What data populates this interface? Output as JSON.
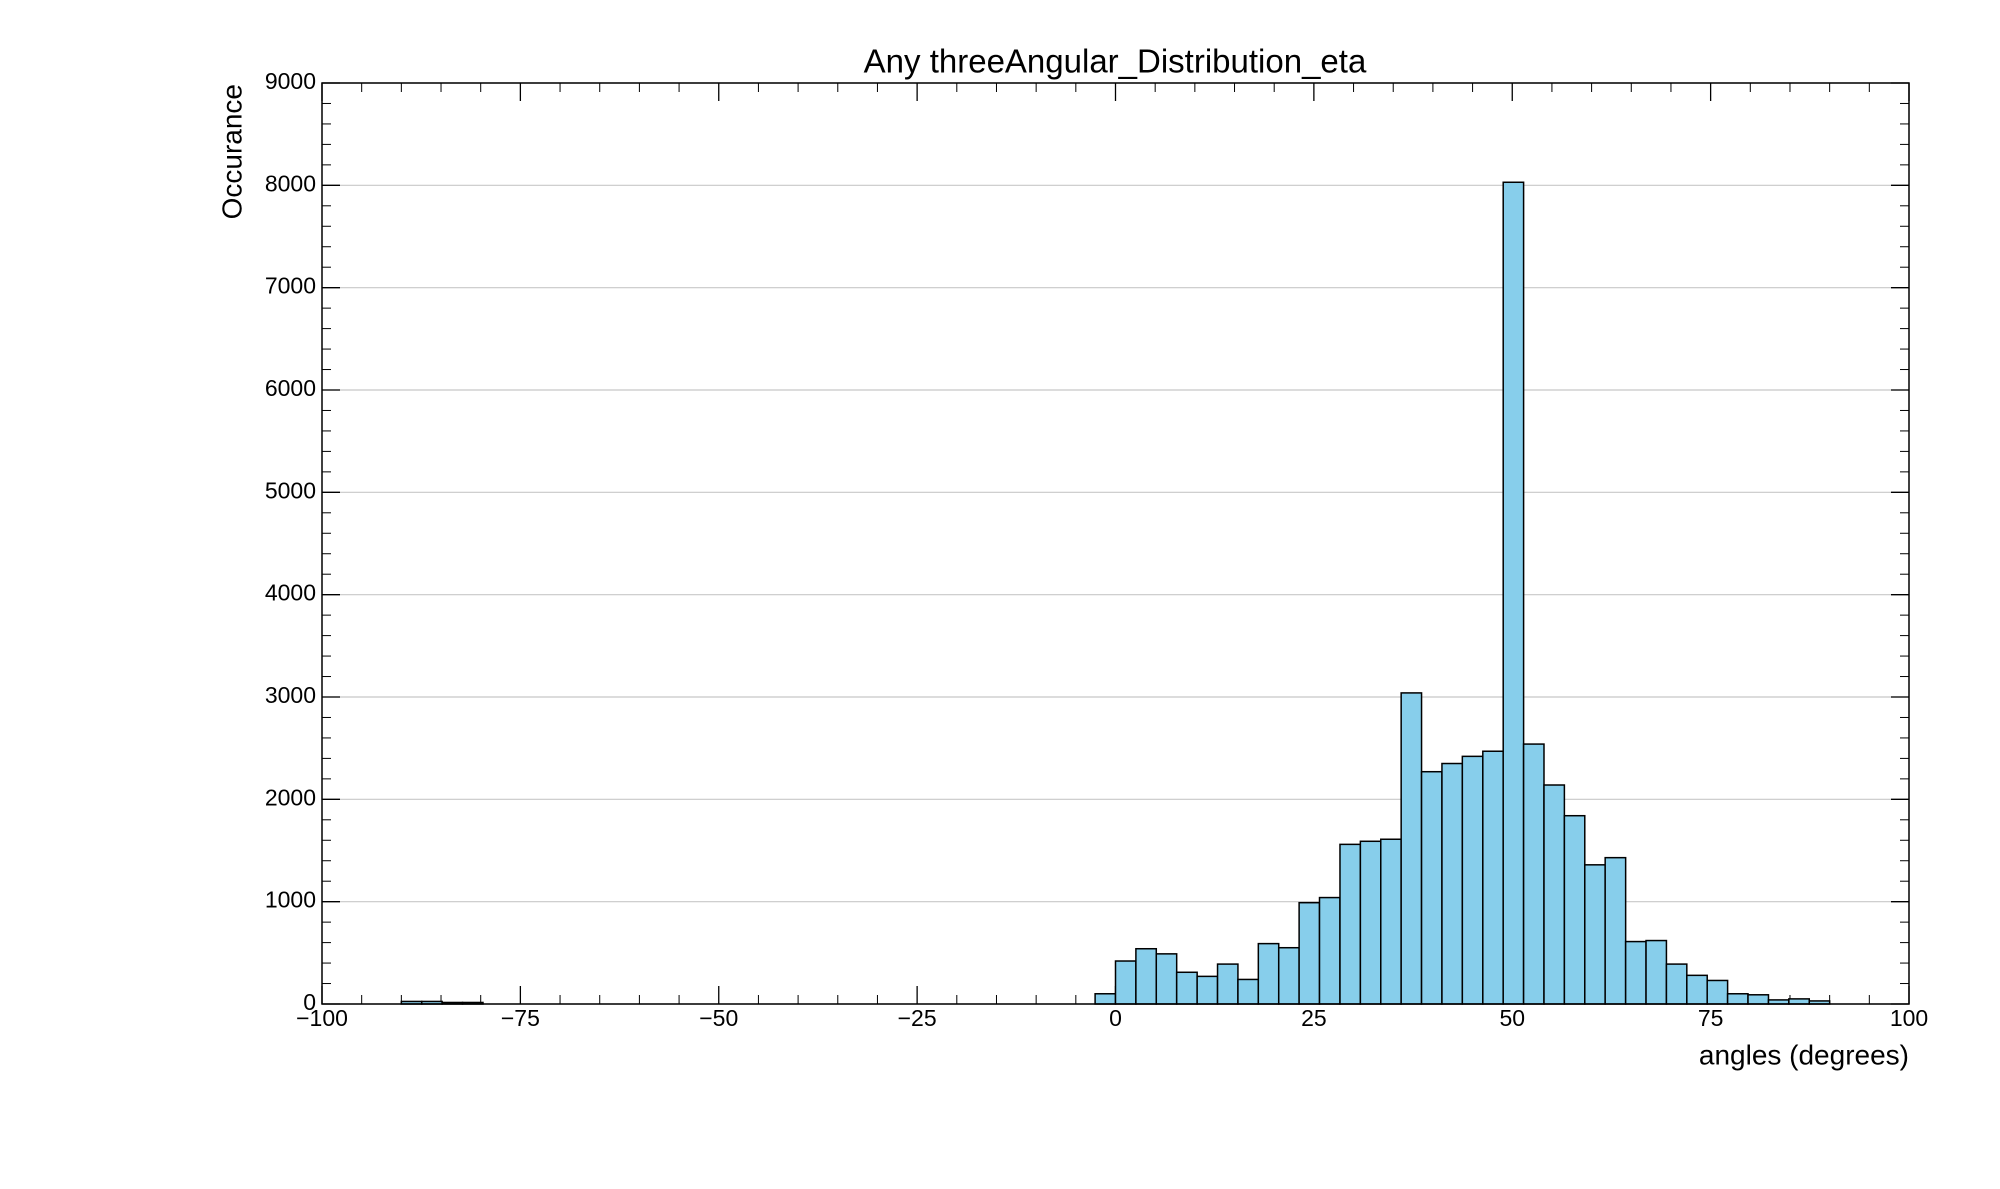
{
  "chart_data": {
    "type": "histogram",
    "title": "Any threeAngular_Distribution_eta",
    "x_label": "angles (degrees)",
    "y_label": "Occurance",
    "color": "#87ceeb",
    "edgecolor": "#000000",
    "bins": [
      -90,
      -87.43,
      -84.86,
      -82.29,
      -79.71,
      -77.14,
      -74.57,
      -72,
      -69.43,
      -66.86,
      -64.29,
      -61.71,
      -59.14,
      -56.57,
      -54,
      -51.43,
      -48.86,
      -46.29,
      -43.71,
      -41.14,
      -38.57,
      -36,
      -33.43,
      -30.86,
      -28.29,
      -25.71,
      -23.14,
      -20.57,
      -18,
      -15.43,
      -12.86,
      -10.29,
      -7.71,
      -5.14,
      -2.57,
      0,
      2.57,
      5.14,
      7.71,
      10.29,
      12.86,
      15.43,
      18,
      20.57,
      23.14,
      25.71,
      28.29,
      30.86,
      33.43,
      36,
      38.57,
      41.14,
      43.71,
      46.29,
      48.86,
      51.43,
      54,
      56.57,
      59.14,
      61.71,
      64.29,
      66.86,
      69.43,
      72,
      74.57,
      77.14,
      79.71,
      82.29,
      84.86,
      87.43,
      90
    ],
    "values": [
      25,
      25,
      15,
      15,
      0,
      0,
      0,
      0,
      0,
      0,
      0,
      0,
      0,
      0,
      0,
      0,
      0,
      0,
      0,
      0,
      0,
      0,
      0,
      0,
      0,
      0,
      0,
      0,
      0,
      0,
      0,
      0,
      0,
      0,
      100,
      420,
      540,
      490,
      310,
      270,
      390,
      240,
      590,
      550,
      990,
      1040,
      1560,
      1590,
      1610,
      3040,
      2270,
      2350,
      2420,
      2470,
      8030,
      2540,
      2140,
      1840,
      1360,
      1430,
      610,
      620,
      390,
      280,
      230,
      100,
      90,
      40,
      50,
      30
    ],
    "xlim": [
      -100,
      100
    ],
    "xticks": [
      {
        "value": -100,
        "label": "−100"
      },
      {
        "value": -75,
        "label": "−75"
      },
      {
        "value": -50,
        "label": "−50"
      },
      {
        "value": -25,
        "label": "−25"
      },
      0,
      25,
      50,
      75,
      100
    ],
    "ylim": [
      0,
      9000
    ],
    "yticks": [
      0,
      1000,
      2000,
      3000,
      4000,
      5000,
      6000,
      7000,
      8000,
      9000
    ],
    "grid": "y"
  }
}
